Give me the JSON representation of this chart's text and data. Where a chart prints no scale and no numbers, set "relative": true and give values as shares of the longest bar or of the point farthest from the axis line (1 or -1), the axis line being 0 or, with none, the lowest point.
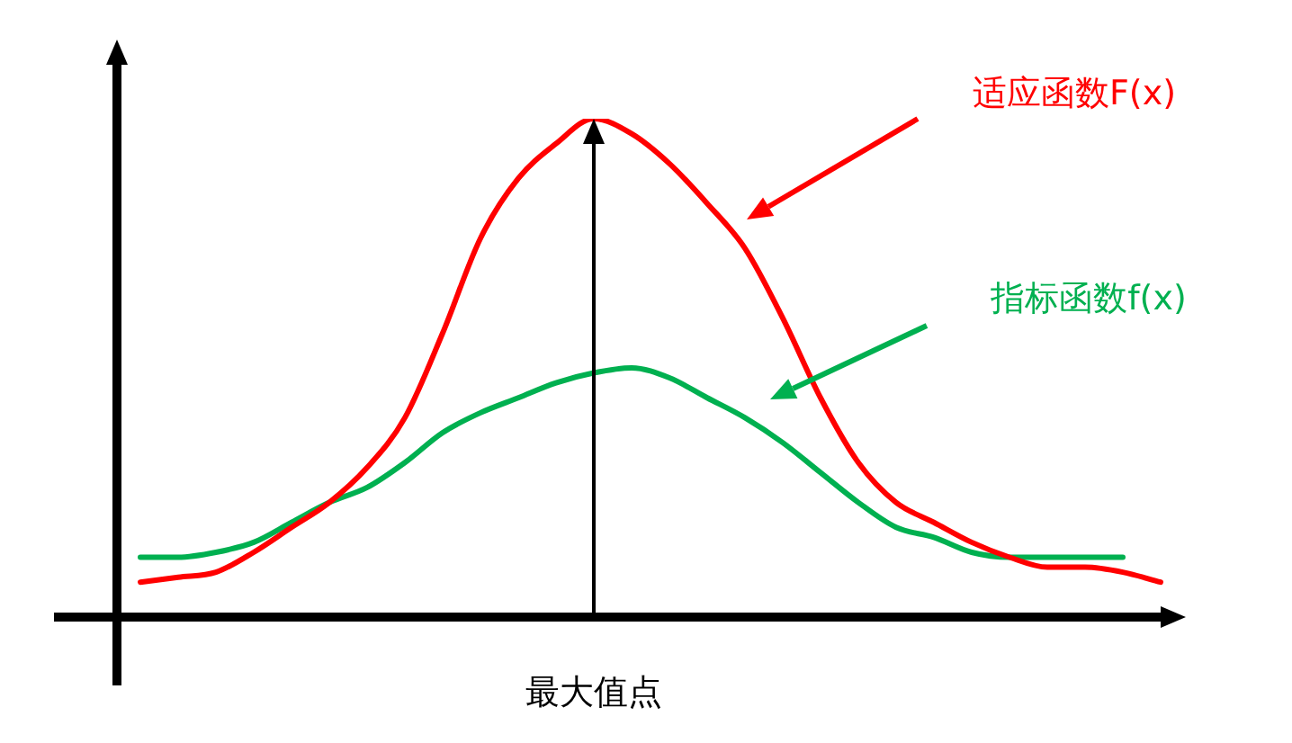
{
  "chart_data": {
    "type": "line",
    "relative": true,
    "legend": false,
    "marker": "none",
    "line_style": "solid",
    "categories": [
      null,
      null,
      null,
      null,
      null,
      null,
      null,
      null,
      null,
      null,
      null,
      null,
      null,
      null,
      null,
      null,
      null,
      null,
      null,
      null,
      null,
      null,
      null,
      null,
      null,
      null,
      null,
      null
    ],
    "series": [
      {
        "color": "#ff0000",
        "values": [
          0.07,
          0.08,
          0.09,
          0.13,
          0.18,
          0.23,
          0.3,
          0.4,
          0.57,
          0.76,
          0.88,
          0.95,
          1.0,
          0.97,
          0.91,
          0.83,
          0.74,
          0.6,
          0.44,
          0.31,
          0.23,
          0.19,
          0.15,
          0.12,
          0.1,
          0.1,
          0.09,
          0.07
        ]
      },
      {
        "color": "#00b050",
        "values": [
          0.12,
          0.12,
          0.13,
          0.15,
          0.19,
          0.23,
          0.26,
          0.31,
          0.37,
          0.41,
          0.44,
          0.47,
          0.49,
          0.5,
          0.48,
          0.44,
          0.4,
          0.35,
          0.29,
          0.23,
          0.18,
          0.16,
          0.13,
          0.12,
          0.12,
          0.12,
          0.12,
          null
        ]
      }
    ],
    "annotations": [
      "适应函数F(x)",
      "指标函数f(x)",
      "最大值点"
    ]
  }
}
